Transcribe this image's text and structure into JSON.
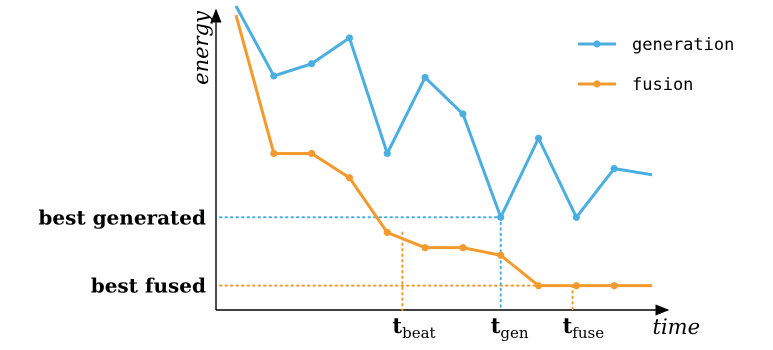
{
  "chart_data": {
    "type": "line",
    "xlabel": "time",
    "ylabel": "energy",
    "x": [
      1,
      2,
      3,
      4,
      5,
      6,
      7,
      8,
      9,
      10,
      11,
      12
    ],
    "xlim": [
      0,
      11.5
    ],
    "ylim": [
      0,
      20
    ],
    "legend_position": "top-right",
    "grid": false,
    "series": [
      {
        "name": "generation",
        "color": "#4aaee0",
        "x": [
          0.5,
          1.5,
          2.5,
          3.5,
          4.5,
          5.5,
          6.5,
          7.5,
          8.5,
          9.5,
          10.5,
          11.5
        ],
        "values": [
          20.0,
          15.4,
          16.2,
          17.9,
          10.3,
          15.3,
          12.9,
          6.1,
          11.3,
          6.1,
          9.3,
          8.9
        ]
      },
      {
        "name": "fusion",
        "color": "#f29a2e",
        "x": [
          0.5,
          1.5,
          2.5,
          3.5,
          4.5,
          5.5,
          6.5,
          7.5,
          8.5,
          9.5,
          10.5,
          11.5
        ],
        "values": [
          19.4,
          10.3,
          10.3,
          8.7,
          5.1,
          4.1,
          4.1,
          3.6,
          1.6,
          1.6,
          1.6,
          1.6
        ]
      }
    ],
    "reference_lines": [
      {
        "label": "best generated",
        "series": "generation",
        "y": 6.1,
        "x": 7.5,
        "marker": "t",
        "marker_sub": "gen"
      },
      {
        "label": "best fused",
        "series": "fusion",
        "y": 1.6,
        "x": 9.4,
        "marker": "t",
        "marker_sub": "fuse"
      }
    ],
    "x_markers": [
      {
        "label": "t",
        "sub": "beat",
        "x": 4.9,
        "color": "#f29a2e",
        "y_to": 5.1
      },
      {
        "label": "t",
        "sub": "gen",
        "x": 7.5,
        "color": "#4aaee0",
        "y_to": 6.1
      },
      {
        "label": "t",
        "sub": "fuse",
        "x": 9.4,
        "color": "#f29a2e",
        "y_to": 1.6
      }
    ]
  }
}
